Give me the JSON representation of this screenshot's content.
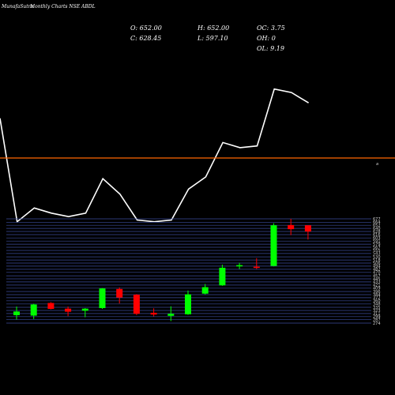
{
  "header": {
    "brand": "MunafaSutra",
    "title": "Monthly Charts NSE ABDL"
  },
  "ohlc": {
    "open": "O: 652.00",
    "high": "H: 652.00",
    "oc": "OC: 3.75",
    "close": "C: 628.45",
    "low": "L: 597.10",
    "oh": "OH: 0",
    "ol": "OL: 9.19"
  },
  "colors": {
    "background": "#000000",
    "up": "#00ff00",
    "down": "#ff0000",
    "line": "#ffffff",
    "separator": "#ff6600",
    "grid": "#3b4d9c"
  },
  "chart_data": [
    {
      "type": "line",
      "title": "",
      "x": [
        0,
        1,
        2,
        3,
        4,
        5,
        6,
        7,
        8,
        9,
        10,
        11,
        12,
        13,
        14,
        15,
        16,
        17,
        18
      ],
      "values": [
        368,
        308,
        316,
        313,
        311,
        313,
        333,
        324,
        309,
        308,
        309,
        327,
        334,
        354,
        351,
        352,
        385,
        383,
        377
      ],
      "ylim": [
        290,
        400
      ],
      "grid": false
    },
    {
      "type": "candlestick",
      "title": "",
      "end_label": "a",
      "y_ticks": [
        274,
        287,
        299,
        311,
        323,
        335,
        348,
        360,
        372,
        384,
        396,
        409,
        421,
        433,
        445,
        457,
        470,
        482,
        494,
        506,
        518,
        530,
        543,
        555,
        567,
        579,
        591,
        603,
        616,
        628,
        640,
        652,
        664,
        677
      ],
      "ylim": [
        274,
        677
      ],
      "grid": true,
      "candles": [
        {
          "o": 305,
          "h": 338,
          "l": 288,
          "c": 319
        },
        {
          "o": 303,
          "h": 349,
          "l": 290,
          "c": 346
        },
        {
          "o": 352,
          "h": 355,
          "l": 327,
          "c": 329
        },
        {
          "o": 330,
          "h": 338,
          "l": 301,
          "c": 318
        },
        {
          "o": 322,
          "h": 332,
          "l": 297,
          "c": 330
        },
        {
          "o": 332,
          "h": 410,
          "l": 329,
          "c": 408
        },
        {
          "o": 406,
          "h": 412,
          "l": 350,
          "c": 373
        },
        {
          "o": 384,
          "h": 386,
          "l": 305,
          "c": 310
        },
        {
          "o": 314,
          "h": 331,
          "l": 300,
          "c": 307
        },
        {
          "o": 302,
          "h": 339,
          "l": 282,
          "c": 310
        },
        {
          "o": 308,
          "h": 400,
          "l": 306,
          "c": 385
        },
        {
          "o": 388,
          "h": 425,
          "l": 385,
          "c": 413
        },
        {
          "o": 420,
          "h": 500,
          "l": 418,
          "c": 488
        },
        {
          "o": 493,
          "h": 507,
          "l": 483,
          "c": 498
        },
        {
          "o": 492,
          "h": 525,
          "l": 483,
          "c": 488
        },
        {
          "o": 495,
          "h": 660,
          "l": 493,
          "c": 652
        },
        {
          "o": 653,
          "h": 677,
          "l": 614,
          "c": 637
        },
        {
          "o": 652,
          "h": 652,
          "l": 597,
          "c": 628
        }
      ]
    }
  ]
}
